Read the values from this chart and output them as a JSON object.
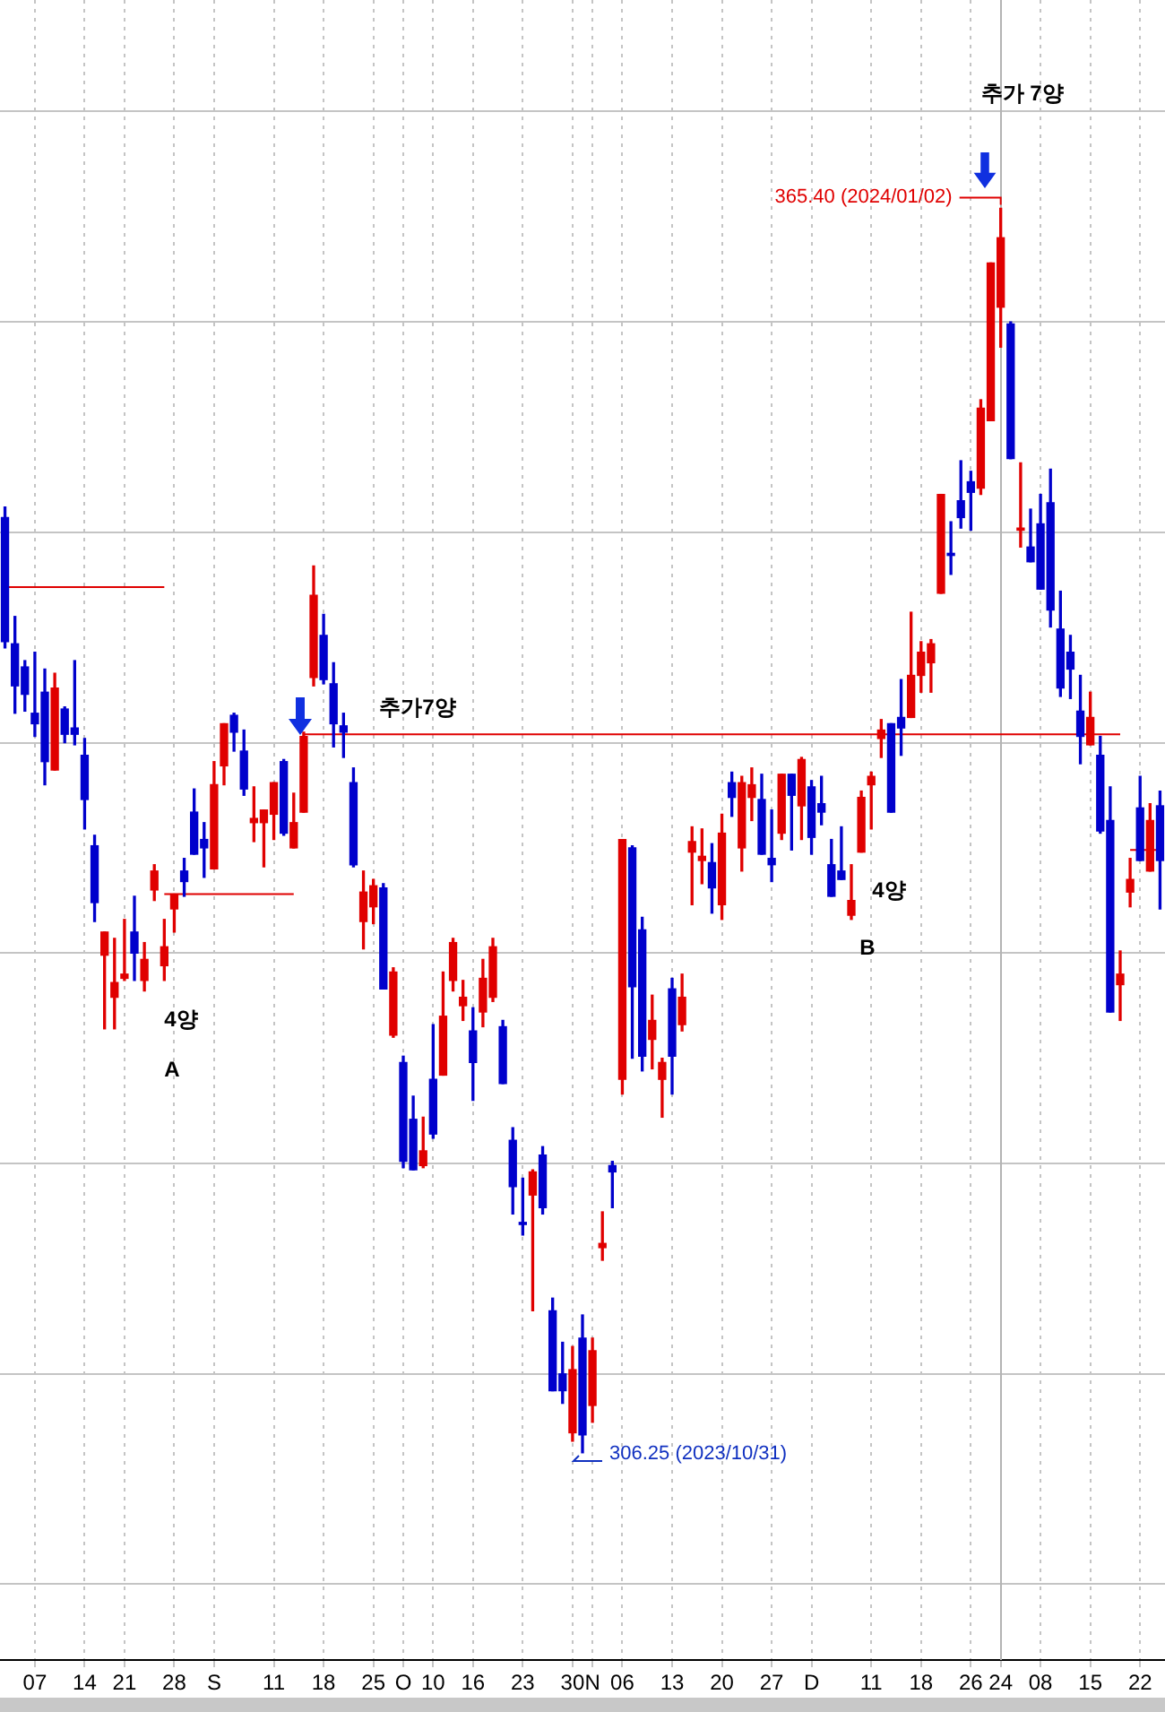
{
  "chart_data": {
    "type": "candlestick",
    "categories": [
      null,
      null,
      null,
      "07",
      null,
      null,
      null,
      null,
      "14",
      null,
      null,
      null,
      "21",
      null,
      null,
      null,
      null,
      "28",
      null,
      null,
      null,
      "S",
      null,
      null,
      null,
      null,
      null,
      "11",
      null,
      null,
      null,
      null,
      "18",
      null,
      null,
      null,
      null,
      "25",
      null,
      null,
      "O",
      null,
      null,
      "10",
      null,
      null,
      null,
      "16",
      null,
      null,
      null,
      null,
      "23",
      null,
      null,
      null,
      null,
      "30",
      null,
      "N",
      null,
      null,
      "06",
      null,
      null,
      null,
      null,
      "13",
      null,
      null,
      null,
      null,
      "20",
      null,
      null,
      null,
      null,
      "27",
      null,
      null,
      null,
      "D",
      null,
      null,
      null,
      null,
      null,
      "11",
      null,
      null,
      null,
      null,
      "18",
      null,
      null,
      null,
      null,
      "26",
      null,
      null,
      "24",
      null,
      null,
      null,
      "08",
      null,
      null,
      null,
      null,
      "15",
      null,
      null,
      null,
      null,
      "22",
      null,
      null
    ],
    "ohlc": [
      [
        350.7,
        351.2,
        344.5,
        344.8
      ],
      [
        344.7,
        346.0,
        341.4,
        342.7
      ],
      [
        343.6,
        343.9,
        341.5,
        342.3
      ],
      [
        341.4,
        344.3,
        340.3,
        340.9
      ],
      [
        342.4,
        343.5,
        338.0,
        339.1
      ],
      [
        338.7,
        343.3,
        338.7,
        342.6
      ],
      [
        341.6,
        341.7,
        340.0,
        340.4
      ],
      [
        340.7,
        343.9,
        339.9,
        340.4
      ],
      [
        339.4,
        340.2,
        335.9,
        337.3
      ],
      [
        335.1,
        335.6,
        331.5,
        332.4
      ],
      [
        329.9,
        331.0,
        326.4,
        331.0
      ],
      [
        327.9,
        330.7,
        326.4,
        328.6
      ],
      [
        328.8,
        331.6,
        328.7,
        329.0
      ],
      [
        331.0,
        332.7,
        328.7,
        330.0
      ],
      [
        328.7,
        330.5,
        328.2,
        329.7
      ],
      [
        333.0,
        334.2,
        332.5,
        333.9
      ],
      [
        329.4,
        331.6,
        328.7,
        330.3
      ],
      [
        332.1,
        332.8,
        331.0,
        332.8
      ],
      [
        333.9,
        334.5,
        332.7,
        333.4
      ],
      [
        336.7,
        337.8,
        334.7,
        334.7
      ],
      [
        335.4,
        336.2,
        333.6,
        335.0
      ],
      [
        334.0,
        339.1,
        334.0,
        338.0
      ],
      [
        338.9,
        340.9,
        338.0,
        340.9
      ],
      [
        341.3,
        341.4,
        339.6,
        340.5
      ],
      [
        339.6,
        340.6,
        337.5,
        337.8
      ],
      [
        336.2,
        337.9,
        335.3,
        336.4
      ],
      [
        336.2,
        336.8,
        334.1,
        336.8
      ],
      [
        336.6,
        338.1,
        335.4,
        338.1
      ],
      [
        339.1,
        339.2,
        335.6,
        335.7
      ],
      [
        335.0,
        337.6,
        335.0,
        336.2
      ],
      [
        336.7,
        340.5,
        336.7,
        340.3
      ],
      [
        343.1,
        348.4,
        342.7,
        347.0
      ],
      [
        345.1,
        346.1,
        342.8,
        343.0
      ],
      [
        342.8,
        343.8,
        339.8,
        340.9
      ],
      [
        340.8,
        341.4,
        339.3,
        340.5
      ],
      [
        338.1,
        338.8,
        334.1,
        334.2
      ],
      [
        331.5,
        333.9,
        330.2,
        332.9
      ],
      [
        332.2,
        333.5,
        331.4,
        333.2
      ],
      [
        333.1,
        333.3,
        328.3,
        328.3
      ],
      [
        326.1,
        329.3,
        326.0,
        329.1
      ],
      [
        324.8,
        325.1,
        319.8,
        320.1
      ],
      [
        322.1,
        323.2,
        319.7,
        319.7
      ],
      [
        319.9,
        322.2,
        319.8,
        320.6
      ],
      [
        324.0,
        326.6,
        321.2,
        321.4
      ],
      [
        324.2,
        329.1,
        324.2,
        327.0
      ],
      [
        328.7,
        330.7,
        328.2,
        330.5
      ],
      [
        327.5,
        328.7,
        326.8,
        327.9
      ],
      [
        326.3,
        327.4,
        323.0,
        324.8
      ],
      [
        327.2,
        329.7,
        326.5,
        328.8
      ],
      [
        327.9,
        330.7,
        327.7,
        330.3
      ],
      [
        326.5,
        326.8,
        323.8,
        323.8
      ],
      [
        321.1,
        321.7,
        317.6,
        318.9
      ],
      [
        317.2,
        319.3,
        316.6,
        317.1
      ],
      [
        318.5,
        319.7,
        313.0,
        319.6
      ],
      [
        320.4,
        320.8,
        317.6,
        317.9
      ],
      [
        313.0,
        313.6,
        309.2,
        309.2
      ],
      [
        310.0,
        311.5,
        308.6,
        309.2
      ],
      [
        307.2,
        311.3,
        306.8,
        310.2
      ],
      [
        311.7,
        312.8,
        306.25,
        307.1
      ],
      [
        308.5,
        311.7,
        307.7,
        311.1
      ],
      [
        316.0,
        317.7,
        315.4,
        316.2
      ],
      [
        319.9,
        320.1,
        317.9,
        319.6
      ],
      [
        324.0,
        335.4,
        323.3,
        335.4
      ],
      [
        335.0,
        335.1,
        325.0,
        328.4
      ],
      [
        331.1,
        331.7,
        324.4,
        325.1
      ],
      [
        325.9,
        328.0,
        324.5,
        326.8
      ],
      [
        324.0,
        325.0,
        322.2,
        324.8
      ],
      [
        328.3,
        328.8,
        323.3,
        325.1
      ],
      [
        326.6,
        329.0,
        326.3,
        327.9
      ],
      [
        334.8,
        336.0,
        332.3,
        335.3
      ],
      [
        334.4,
        335.9,
        333.3,
        334.6
      ],
      [
        334.3,
        335.2,
        331.9,
        333.1
      ],
      [
        332.3,
        336.6,
        331.6,
        335.7
      ],
      [
        338.1,
        338.6,
        336.5,
        337.4
      ],
      [
        335.0,
        338.4,
        333.9,
        338.1
      ],
      [
        337.4,
        338.8,
        336.3,
        338.0
      ],
      [
        337.3,
        338.5,
        334.7,
        334.7
      ],
      [
        334.5,
        336.8,
        333.4,
        334.2
      ],
      [
        335.7,
        338.5,
        335.4,
        338.5
      ],
      [
        338.5,
        338.5,
        334.9,
        337.5
      ],
      [
        337.0,
        339.3,
        335.4,
        339.2
      ],
      [
        337.9,
        338.2,
        334.7,
        335.5
      ],
      [
        337.1,
        338.4,
        336.1,
        336.7
      ],
      [
        334.2,
        335.4,
        332.7,
        332.7
      ],
      [
        333.9,
        336.0,
        333.5,
        333.5
      ],
      [
        331.8,
        334.2,
        331.6,
        332.5
      ],
      [
        334.8,
        337.7,
        334.8,
        337.4
      ],
      [
        338.0,
        338.6,
        335.9,
        338.4
      ],
      [
        340.2,
        341.1,
        339.3,
        340.6
      ],
      [
        340.9,
        340.9,
        336.7,
        336.7
      ],
      [
        341.2,
        343.0,
        339.4,
        340.7
      ],
      [
        341.2,
        346.2,
        341.2,
        343.2
      ],
      [
        343.2,
        344.8,
        342.4,
        344.3
      ],
      [
        343.8,
        344.9,
        342.4,
        344.7
      ],
      [
        347.1,
        351.8,
        347.1,
        351.8
      ],
      [
        349.0,
        350.5,
        348.0,
        348.9
      ],
      [
        351.5,
        353.4,
        350.2,
        350.7
      ],
      [
        352.4,
        352.9,
        350.1,
        351.9
      ],
      [
        352.1,
        356.3,
        351.8,
        355.9
      ],
      [
        355.3,
        362.8,
        355.3,
        362.8
      ],
      [
        360.7,
        365.4,
        358.8,
        364.0
      ],
      [
        359.9,
        360.0,
        353.5,
        353.5
      ],
      [
        350.1,
        353.3,
        349.3,
        350.2
      ],
      [
        349.3,
        351.1,
        348.6,
        348.6
      ],
      [
        350.4,
        351.8,
        347.3,
        347.3
      ],
      [
        351.4,
        353.0,
        345.5,
        346.3
      ],
      [
        345.4,
        347.2,
        342.2,
        342.6
      ],
      [
        344.3,
        345.1,
        342.1,
        343.5
      ],
      [
        341.5,
        343.2,
        339.0,
        340.3
      ],
      [
        339.9,
        342.4,
        339.9,
        341.2
      ],
      [
        339.4,
        340.3,
        335.7,
        335.8
      ],
      [
        336.3,
        337.9,
        327.2,
        327.2
      ],
      [
        328.5,
        330.1,
        326.8,
        329.0
      ],
      [
        332.9,
        334.5,
        332.2,
        333.5
      ],
      [
        336.9,
        338.4,
        334.4,
        334.4
      ],
      [
        333.9,
        337.1,
        333.9,
        336.3
      ],
      [
        337.0,
        337.7,
        332.1,
        334.4
      ]
    ],
    "colors": [
      "#0000cc",
      "#0000cc",
      "#0000cc",
      "#0000cc",
      "#0000cc",
      "#e00000",
      "#0000cc",
      "#0000cc",
      "#0000cc",
      "#0000cc",
      "#e00000",
      "#e00000",
      "#e00000",
      "#0000cc",
      "#e00000",
      "#e00000",
      "#e00000",
      "#e00000",
      "#0000cc",
      "#0000cc",
      "#0000cc",
      "#e00000",
      "#e00000",
      "#0000cc",
      "#0000cc",
      "#e00000",
      "#e00000",
      "#e00000",
      "#0000cc",
      "#e00000",
      "#e00000",
      "#e00000",
      "#0000cc",
      "#0000cc",
      "#0000cc",
      "#0000cc",
      "#e00000",
      "#e00000",
      "#0000cc",
      "#e00000",
      "#0000cc",
      "#0000cc",
      "#e00000",
      "#0000cc",
      "#e00000",
      "#e00000",
      "#e00000",
      "#0000cc",
      "#e00000",
      "#e00000",
      "#0000cc",
      "#0000cc",
      "#0000cc",
      "#e00000",
      "#0000cc",
      "#0000cc",
      "#0000cc",
      "#e00000",
      "#0000cc",
      "#e00000",
      "#e00000",
      "#0000cc",
      "#e00000",
      "#0000cc",
      "#0000cc",
      "#e00000",
      "#e00000",
      "#0000cc",
      "#e00000",
      "#e00000",
      "#e00000",
      "#0000cc",
      "#e00000",
      "#0000cc",
      "#e00000",
      "#e00000",
      "#0000cc",
      "#0000cc",
      "#e00000",
      "#0000cc",
      "#e00000",
      "#0000cc",
      "#0000cc",
      "#0000cc",
      "#0000cc",
      "#e00000",
      "#e00000",
      "#e00000",
      "#e00000",
      "#0000cc",
      "#0000cc",
      "#e00000",
      "#e00000",
      "#e00000",
      "#e00000",
      "#0000cc",
      "#0000cc",
      "#0000cc",
      "#e00000",
      "#e00000",
      "#e00000",
      "#0000cc",
      "#e00000",
      "#0000cc",
      "#0000cc",
      "#0000cc",
      "#0000cc",
      "#0000cc",
      "#0000cc",
      "#e00000",
      "#0000cc",
      "#0000cc",
      "#e00000",
      "#e00000",
      "#0000cc",
      "#e00000",
      "#0000cc"
    ],
    "series": [
      {
        "type": "line",
        "color": "#e00000",
        "values": [
          347.4,
          347.4,
          347.4,
          347.4,
          347.4,
          347.4,
          347.4,
          347.4,
          347.4,
          347.4,
          347.4,
          347.4,
          347.4,
          347.4,
          347.4,
          347.4,
          347.4,
          null,
          null,
          null,
          null,
          null,
          null,
          null,
          null,
          null,
          null,
          null,
          null,
          null,
          null,
          null,
          null,
          null,
          null,
          null,
          null,
          null,
          null,
          null,
          null,
          null,
          null,
          null,
          null,
          null,
          null,
          null,
          null,
          null,
          null,
          null,
          null,
          null,
          null,
          null,
          null,
          null,
          null,
          null,
          null,
          null,
          null,
          null,
          null,
          null,
          null,
          null,
          null,
          null,
          null,
          null,
          null,
          null,
          null,
          null,
          null,
          null,
          null,
          null,
          null,
          null,
          null,
          null,
          null,
          null,
          null,
          null,
          null,
          null,
          null,
          null,
          null,
          null,
          null,
          null,
          null,
          null,
          null,
          null,
          null,
          null,
          null,
          null,
          null,
          null,
          null,
          null,
          null,
          null,
          null,
          null,
          null,
          null,
          null,
          null,
          null
        ]
      },
      {
        "type": "line",
        "color": "#e00000",
        "values": [
          null,
          null,
          null,
          null,
          null,
          null,
          null,
          null,
          null,
          null,
          null,
          null,
          null,
          null,
          null,
          null,
          332.8,
          332.8,
          332.8,
          332.8,
          332.8,
          332.8,
          332.8,
          332.8,
          332.8,
          332.8,
          332.8,
          332.8,
          332.8,
          332.8,
          null,
          null,
          null,
          null,
          null,
          null,
          null,
          null,
          null,
          null,
          null,
          null,
          null,
          null,
          null,
          null,
          null,
          null,
          null,
          null,
          null,
          null,
          null,
          null,
          null,
          null,
          null,
          null,
          null,
          null,
          null,
          null,
          null,
          null,
          null,
          null,
          null,
          null,
          null,
          null,
          null,
          null,
          null,
          null,
          null,
          null,
          null,
          null,
          null,
          null,
          null,
          null,
          null,
          null,
          null,
          null,
          null,
          null,
          null,
          null,
          null,
          null,
          null,
          null,
          null,
          null,
          null,
          null,
          null,
          null,
          null,
          null,
          null,
          null,
          null,
          null,
          null,
          null,
          null,
          null,
          null,
          null,
          null,
          null,
          null,
          null,
          null
        ]
      },
      {
        "type": "line",
        "color": "#e00000",
        "values": [
          null,
          null,
          null,
          null,
          null,
          null,
          null,
          null,
          null,
          null,
          null,
          null,
          null,
          null,
          null,
          null,
          null,
          null,
          null,
          null,
          null,
          null,
          null,
          null,
          null,
          null,
          null,
          null,
          null,
          null,
          340.4,
          340.4,
          340.4,
          340.4,
          340.4,
          340.4,
          340.4,
          340.4,
          340.4,
          340.4,
          340.4,
          340.4,
          340.4,
          340.4,
          340.4,
          340.4,
          340.4,
          340.4,
          340.4,
          340.4,
          340.4,
          340.4,
          340.4,
          340.4,
          340.4,
          340.4,
          340.4,
          340.4,
          340.4,
          340.4,
          340.4,
          340.4,
          340.4,
          340.4,
          340.4,
          340.4,
          340.4,
          340.4,
          340.4,
          340.4,
          340.4,
          340.4,
          340.4,
          340.4,
          340.4,
          340.4,
          340.4,
          340.4,
          340.4,
          340.4,
          340.4,
          340.4,
          340.4,
          340.4,
          340.4,
          340.4,
          340.4,
          340.4,
          340.4,
          340.4,
          340.4,
          340.4,
          340.4,
          340.4,
          340.4,
          340.4,
          340.4,
          340.4,
          340.4,
          340.4,
          340.4,
          340.4,
          340.4,
          340.4,
          340.4,
          340.4,
          340.4,
          340.4,
          340.4,
          340.4,
          340.4,
          340.4,
          340.4,
          null,
          null,
          null,
          null
        ]
      },
      {
        "type": "line",
        "color": "#e00000",
        "values": [
          null,
          null,
          null,
          null,
          null,
          null,
          null,
          null,
          null,
          null,
          null,
          null,
          null,
          null,
          null,
          null,
          null,
          null,
          null,
          null,
          null,
          null,
          null,
          null,
          null,
          null,
          null,
          null,
          null,
          null,
          null,
          null,
          null,
          null,
          null,
          null,
          null,
          null,
          null,
          null,
          null,
          null,
          null,
          null,
          null,
          null,
          null,
          null,
          null,
          null,
          null,
          null,
          null,
          null,
          null,
          null,
          null,
          null,
          null,
          null,
          null,
          null,
          null,
          null,
          null,
          null,
          null,
          null,
          null,
          null,
          null,
          null,
          null,
          null,
          null,
          null,
          null,
          null,
          null,
          null,
          null,
          null,
          null,
          null,
          null,
          null,
          null,
          null,
          null,
          null,
          null,
          null,
          null,
          null,
          null,
          null,
          null,
          null,
          null,
          null,
          null,
          null,
          null,
          null,
          null,
          null,
          null,
          null,
          null,
          null,
          null,
          null,
          null,
          334.9,
          334.9,
          334.9,
          334.9
        ]
      }
    ],
    "ylim": [
      296.4,
      375.3
    ],
    "yticks": [
      {
        "value": 300,
        "label": null
      },
      {
        "value": 310,
        "label": null
      },
      {
        "value": 320,
        "label": null
      },
      {
        "value": 330,
        "label": null
      },
      {
        "value": 340,
        "label": null
      },
      {
        "value": 350,
        "label": null
      },
      {
        "value": 360,
        "label": null
      },
      {
        "value": 370,
        "label": null
      }
    ],
    "tick_labels": "x",
    "grid": true,
    "ref_lines": [
      {
        "axis": "x",
        "value": "24",
        "color": "#b4b4b4"
      }
    ],
    "annotations": [
      {
        "text": "추가 7양",
        "x": "24",
        "y": 370.8
      },
      {
        "text": "365.40 (2024/01/02)",
        "x": "24",
        "y": 365.4
      },
      "306.25 (2023/10/31)",
      "추가7양",
      "4양",
      "A",
      "4양",
      "B"
    ]
  }
}
